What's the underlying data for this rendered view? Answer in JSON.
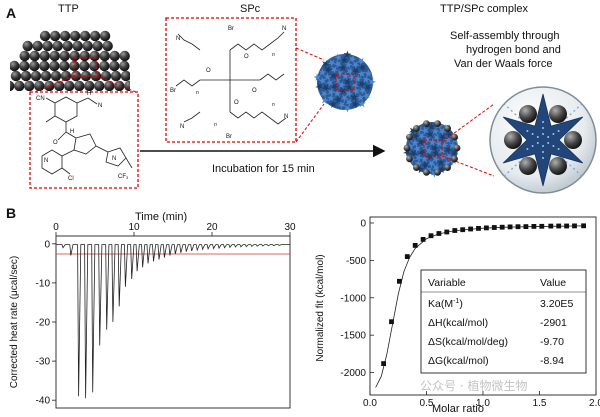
{
  "panel_a": {
    "label": "A",
    "ttp_title": "TTP",
    "spc_title": "SPc",
    "complex_title": "TTP/SPc complex",
    "incubation": "Incubation for 15 min",
    "self_assembly_lines": [
      "Self-assembly through",
      "hydrogen bond and",
      "Van der Waals force"
    ],
    "atoms": {
      "cn": "CN",
      "h": "H",
      "n": "N",
      "o": "O",
      "cl": "Cl",
      "cf3": "CF",
      "br": "Br",
      "n_sub": "n"
    }
  },
  "panel_b": {
    "label": "B",
    "left": {
      "top_xlabel": "Time (min)",
      "ylabel": "Corrected heat rate (μcal/sec)",
      "x_ticks": [
        "0",
        "10",
        "20",
        "30"
      ],
      "y_ticks": [
        "0",
        "-10",
        "-20",
        "-30",
        "-40"
      ]
    },
    "right": {
      "xlabel": "Molar ratio",
      "ylabel": "Normalized fit (kcal/mol)",
      "x_ticks": [
        "0.0",
        "0.5",
        "1.0",
        "1.5",
        "2.0"
      ],
      "y_ticks": [
        "0",
        "-500",
        "-1000",
        "-1500",
        "-2000"
      ],
      "table": {
        "headers": [
          "Variable",
          "Value"
        ],
        "rows": [
          [
            "Ka(M",
            "3.20E5"
          ],
          [
            "ΔH(kcal/mol)",
            "-2901"
          ],
          [
            "ΔS(kcal/mol/deg)",
            "-9.70"
          ],
          [
            "ΔG(kcal/mol)",
            "-8.94"
          ]
        ],
        "ka_exp": "-1",
        "ka_close": ")"
      }
    }
  },
  "watermark": "公众号 · 植物微生物",
  "chart_data": [
    {
      "type": "line",
      "title": "",
      "xlabel": "Time (min)",
      "ylabel": "Corrected heat rate (μcal/sec)",
      "xlim": [
        0,
        30
      ],
      "ylim": [
        -42,
        2
      ],
      "series": [
        {
          "x": [
            0.9,
            1.9,
            2.9,
            3.8,
            4.7,
            5.6,
            6.5,
            7.3,
            8.1,
            8.9,
            9.7,
            10.4,
            11.1,
            11.8,
            12.5,
            13.2,
            13.9,
            14.6,
            15.3,
            16.0,
            16.7,
            17.4,
            18.1,
            18.8,
            19.5,
            20.2,
            20.9,
            21.6,
            22.3,
            23.0,
            23.7,
            24.4,
            25.1,
            25.8,
            26.5,
            27.2,
            27.9,
            28.6
          ],
          "y": [
            -1,
            -3,
            -39,
            -39.5,
            -38,
            -26,
            -22,
            -20,
            -16,
            -11,
            -9,
            -7,
            -6,
            -5,
            -4.5,
            -4,
            -3.5,
            -3,
            -2.6,
            -2.3,
            -2,
            -1.8,
            -1.6,
            -1.4,
            -1.3,
            -1.2,
            -1.1,
            -1.0,
            -0.9,
            -0.8,
            -0.75,
            -0.7,
            -0.65,
            -0.6,
            -0.55,
            -0.5,
            -0.45,
            -0.4
          ]
        }
      ]
    },
    {
      "type": "scatter",
      "title": "",
      "xlabel": "Molar ratio",
      "ylabel": "Normalized fit (kcal/mol)",
      "xlim": [
        0.0,
        2.0
      ],
      "ylim": [
        -2300,
        80
      ],
      "series": [
        {
          "x": [
            0.12,
            0.19,
            0.26,
            0.33,
            0.4,
            0.47,
            0.54,
            0.61,
            0.68,
            0.75,
            0.82,
            0.89,
            0.96,
            1.03,
            1.1,
            1.17,
            1.24,
            1.31,
            1.38,
            1.45,
            1.52,
            1.6,
            1.67,
            1.74,
            1.81,
            1.89
          ],
          "y": [
            -1880,
            -1320,
            -780,
            -450,
            -300,
            -220,
            -170,
            -140,
            -120,
            -100,
            -90,
            -80,
            -72,
            -66,
            -60,
            -56,
            -52,
            -50,
            -48,
            -46,
            -44,
            -42,
            -41,
            -40,
            -39,
            -38
          ]
        }
      ],
      "fit_curve": {
        "x": [
          0.05,
          0.1,
          0.15,
          0.2,
          0.25,
          0.3,
          0.35,
          0.4,
          0.5,
          0.6,
          0.7,
          0.8,
          1.0,
          1.2,
          1.4,
          1.6,
          1.8,
          1.9
        ],
        "y": [
          -2200,
          -2050,
          -1750,
          -1350,
          -950,
          -650,
          -460,
          -340,
          -210,
          -150,
          -115,
          -95,
          -70,
          -57,
          -50,
          -45,
          -40,
          -38
        ]
      }
    }
  ]
}
